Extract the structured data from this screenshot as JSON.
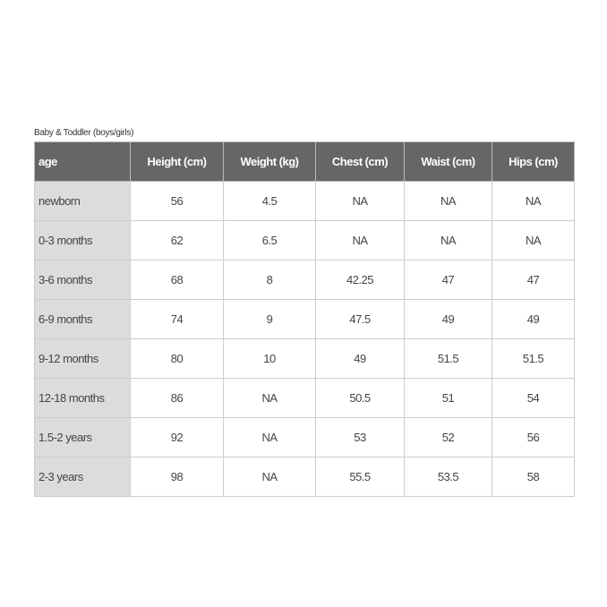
{
  "caption": "Baby & Toddler (boys/girls)",
  "colors": {
    "header_bg": "#666666",
    "first_column_bg": "#dcdcdc"
  },
  "table": {
    "headers": [
      "age",
      "Height (cm)",
      "Weight (kg)",
      "Chest (cm)",
      "Waist (cm)",
      "Hips (cm)"
    ],
    "rows": [
      [
        "newborn",
        "56",
        "4.5",
        "NA",
        "NA",
        "NA"
      ],
      [
        "0-3 months",
        "62",
        "6.5",
        "NA",
        "NA",
        "NA"
      ],
      [
        "3-6 months",
        "68",
        "8",
        "42.25",
        "47",
        "47"
      ],
      [
        "6-9 months",
        "74",
        "9",
        "47.5",
        "49",
        "49"
      ],
      [
        "9-12 months",
        "80",
        "10",
        "49",
        "51.5",
        "51.5"
      ],
      [
        "12-18 months",
        "86",
        "NA",
        "50.5",
        "51",
        "54"
      ],
      [
        "1.5-2 years",
        "92",
        "NA",
        "53",
        "52",
        "56"
      ],
      [
        "2-3 years",
        "98",
        "NA",
        "55.5",
        "53.5",
        "58"
      ]
    ]
  }
}
